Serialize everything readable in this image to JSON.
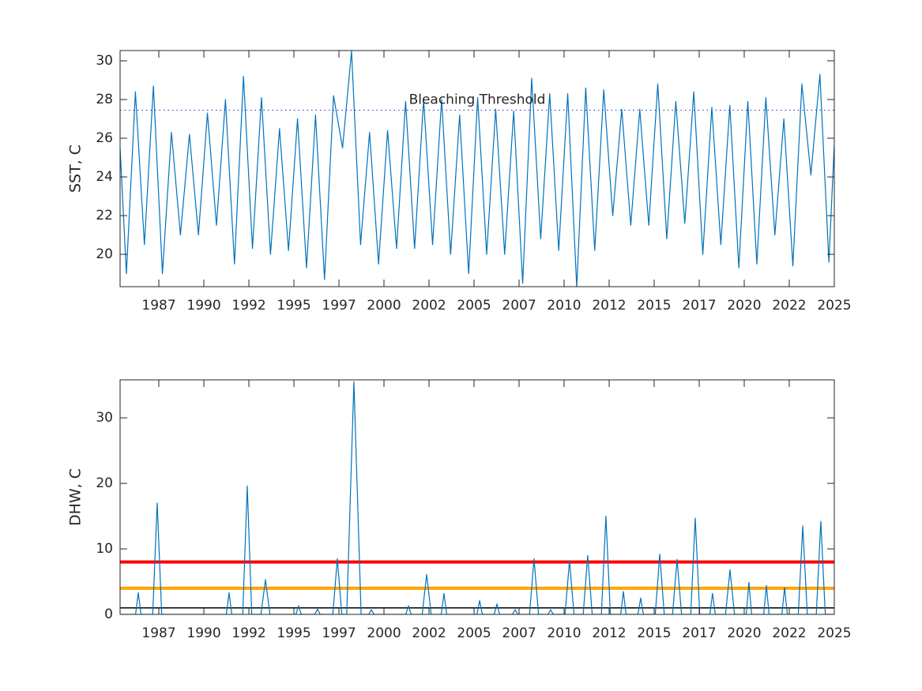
{
  "chart_data": [
    {
      "type": "line",
      "ylabel": "SST, C",
      "color": "#0072bd",
      "xlim": [
        1985.35,
        2025.0
      ],
      "xticks": [
        {
          "value": 1987.5,
          "label": "1987"
        },
        1990,
        {
          "value": 1992.5,
          "label": "1992"
        },
        1995,
        {
          "value": 1997.5,
          "label": "1997"
        },
        2000,
        {
          "value": 2002.5,
          "label": "2002"
        },
        2005,
        {
          "value": 2007.5,
          "label": "2007"
        },
        2010,
        {
          "value": 2012.5,
          "label": "2012"
        },
        2015,
        {
          "value": 2017.5,
          "label": "2017"
        },
        2020,
        {
          "value": 2022.5,
          "label": "2022"
        },
        2025
      ],
      "ylim": [
        18.33,
        30.53
      ],
      "yticks": [
        20,
        22,
        24,
        26,
        28,
        30
      ],
      "reference_lines": [
        {
          "value": 27.45,
          "label": "Bleaching Threshold",
          "color": "#2b2bb0",
          "style": "dotted"
        }
      ],
      "x": [
        1985.35,
        1985.7,
        1986.2,
        1986.7,
        1987.2,
        1987.7,
        1988.2,
        1988.7,
        1989.2,
        1989.7,
        1990.2,
        1990.7,
        1991.2,
        1991.7,
        1992.2,
        1992.7,
        1993.2,
        1993.7,
        1994.2,
        1994.7,
        1995.2,
        1995.7,
        1996.2,
        1996.7,
        1997.2,
        1997.7,
        1998.2,
        1998.7,
        1999.2,
        1999.7,
        2000.2,
        2000.7,
        2001.2,
        2001.7,
        2002.2,
        2002.7,
        2003.2,
        2003.7,
        2004.2,
        2004.7,
        2005.2,
        2005.7,
        2006.2,
        2006.7,
        2007.2,
        2007.7,
        2008.2,
        2008.7,
        2009.2,
        2009.7,
        2010.2,
        2010.7,
        2011.2,
        2011.7,
        2012.2,
        2012.7,
        2013.2,
        2013.7,
        2014.2,
        2014.7,
        2015.2,
        2015.7,
        2016.2,
        2016.7,
        2017.2,
        2017.7,
        2018.2,
        2018.7,
        2019.2,
        2019.7,
        2020.2,
        2020.7,
        2021.2,
        2021.7,
        2022.2,
        2022.7,
        2023.2,
        2023.7,
        2024.2,
        2024.7,
        2025.0
      ],
      "values": [
        25.5,
        19.0,
        28.4,
        20.5,
        28.7,
        19.0,
        26.3,
        21.0,
        26.2,
        21.0,
        27.3,
        21.5,
        28.0,
        19.5,
        29.2,
        20.3,
        28.1,
        20.0,
        26.5,
        20.2,
        27.0,
        19.3,
        27.2,
        18.7,
        28.2,
        25.5,
        30.5,
        20.5,
        26.3,
        19.5,
        26.4,
        20.3,
        27.9,
        20.3,
        28.0,
        20.5,
        28.0,
        20.0,
        27.2,
        19.0,
        28.1,
        20.0,
        27.5,
        20.0,
        27.4,
        18.5,
        29.1,
        20.8,
        28.3,
        20.2,
        28.3,
        18.3,
        28.6,
        20.2,
        28.5,
        22.0,
        27.5,
        21.5,
        27.5,
        21.5,
        28.8,
        20.8,
        27.9,
        21.6,
        28.4,
        20.0,
        27.6,
        20.5,
        27.7,
        19.3,
        27.9,
        19.5,
        28.1,
        21.0,
        27.0,
        19.4,
        28.8,
        24.1,
        29.3,
        19.6,
        25.7
      ]
    },
    {
      "type": "line",
      "ylabel": "DHW, C",
      "color": "#0072bd",
      "xlim": [
        1985.35,
        2025.0
      ],
      "xticks": [
        {
          "value": 1987.5,
          "label": "1987"
        },
        1990,
        {
          "value": 1992.5,
          "label": "1992"
        },
        1995,
        {
          "value": 1997.5,
          "label": "1997"
        },
        2000,
        {
          "value": 2002.5,
          "label": "2002"
        },
        2005,
        {
          "value": 2007.5,
          "label": "2007"
        },
        2010,
        {
          "value": 2012.5,
          "label": "2012"
        },
        2015,
        {
          "value": 2017.5,
          "label": "2017"
        },
        2020,
        {
          "value": 2022.5,
          "label": "2022"
        },
        2025
      ],
      "ylim": [
        0,
        35.8
      ],
      "yticks": [
        0,
        10,
        20,
        30
      ],
      "reference_lines": [
        {
          "value": 8,
          "color": "#ff0000",
          "style": "solid"
        },
        {
          "value": 4,
          "color": "#ffa500",
          "style": "solid"
        },
        {
          "value": 1,
          "color": "#000000",
          "style": "solid"
        }
      ],
      "x": [
        1985.35,
        1986.21,
        1986.36,
        1986.51,
        1987.16,
        1987.41,
        1987.66,
        1991.25,
        1991.4,
        1991.55,
        1992.16,
        1992.41,
        1992.66,
        1993.17,
        1993.42,
        1993.67,
        1995.11,
        1995.26,
        1995.41,
        1996.16,
        1996.31,
        1996.46,
        1997.16,
        1997.41,
        1997.66,
        1997.93,
        1998.33,
        1998.73,
        1999.15,
        1999.3,
        1999.45,
        2001.21,
        2001.36,
        2001.51,
        2002.12,
        2002.37,
        2002.62,
        2003.18,
        2003.33,
        2003.48,
        2005.16,
        2005.31,
        2005.46,
        2006.12,
        2006.27,
        2006.42,
        2007.13,
        2007.28,
        2007.43,
        2008.08,
        2008.33,
        2008.58,
        2009.1,
        2009.25,
        2009.4,
        2010.05,
        2010.3,
        2010.55,
        2011.06,
        2011.31,
        2011.56,
        2012.07,
        2012.32,
        2012.57,
        2013.14,
        2013.29,
        2013.44,
        2014.1,
        2014.25,
        2014.4,
        2015.06,
        2015.31,
        2015.56,
        2016.02,
        2016.27,
        2016.52,
        2017.03,
        2017.28,
        2017.53,
        2018.09,
        2018.24,
        2018.39,
        2018.96,
        2019.21,
        2019.46,
        2020.11,
        2020.26,
        2020.41,
        2021.08,
        2021.23,
        2021.38,
        2022.09,
        2022.24,
        2022.39,
        2023.0,
        2023.25,
        2023.5,
        2024.0,
        2024.25,
        2024.5,
        2025.0
      ],
      "values": [
        0,
        0,
        3.3,
        0,
        0,
        17,
        0,
        0,
        3.3,
        0,
        0,
        19.6,
        0,
        0,
        5.3,
        0,
        0,
        1.3,
        0,
        0,
        0.8,
        0,
        0,
        8.5,
        0,
        0,
        35.5,
        0,
        0,
        0.7,
        0,
        0,
        1.3,
        0,
        0,
        6.1,
        0,
        0,
        3.2,
        0,
        0,
        2.1,
        0,
        0,
        1.6,
        0,
        0,
        0.7,
        0,
        0,
        8.5,
        0,
        0,
        0.7,
        0,
        0,
        8.2,
        0,
        0,
        9,
        0,
        0,
        15,
        0,
        0,
        3.5,
        0,
        0,
        2.5,
        0,
        0,
        9.2,
        0,
        0,
        8.4,
        0,
        0,
        14.7,
        0,
        0,
        3.2,
        0,
        0,
        6.8,
        0,
        0,
        4.9,
        0,
        0,
        4.4,
        0,
        0,
        4.1,
        0,
        0,
        13.5,
        0,
        0,
        14.2,
        0,
        0
      ]
    }
  ]
}
